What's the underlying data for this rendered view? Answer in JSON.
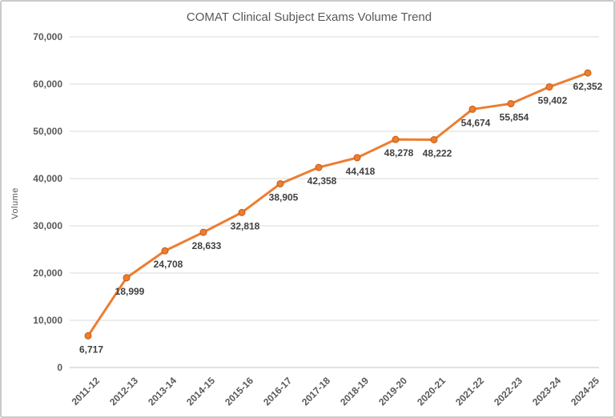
{
  "chart_data": {
    "type": "line",
    "title": "COMAT Clinical Subject Exams Volume Trend",
    "xlabel": "",
    "ylabel": "Volume",
    "categories": [
      "2011-12",
      "2012-13",
      "2013-14",
      "2014-15",
      "2015-16",
      "2016-17",
      "2017-18",
      "2018-19",
      "2019-20",
      "2020-21",
      "2021-22",
      "2022-23",
      "2023-24",
      "2024-25"
    ],
    "values": [
      6717,
      18999,
      24708,
      28633,
      32818,
      38905,
      42358,
      44418,
      48278,
      48222,
      54674,
      55854,
      59402,
      62352
    ],
    "value_labels": [
      "6,717",
      "18,999",
      "24,708",
      "28,633",
      "32,818",
      "38,905",
      "42,358",
      "44,418",
      "48,278",
      "48,222",
      "54,674",
      "55,854",
      "59,402",
      "62,352"
    ],
    "ylim": [
      0,
      70000
    ],
    "ytick_step": 10000,
    "ytick_labels": [
      "0",
      "10,000",
      "20,000",
      "30,000",
      "40,000",
      "50,000",
      "60,000",
      "70,000"
    ],
    "grid": true,
    "legend_position": "none",
    "series_name": "COMAT Clinical Subject Exams Volume",
    "series_color": "#ED7D31",
    "marker_stroke_color": "#C55A11",
    "data_label_color": "#404040",
    "axis_text_color": "#595959",
    "gridline_color": "#DADADA",
    "axis_line_color": "#C6C6C6"
  }
}
